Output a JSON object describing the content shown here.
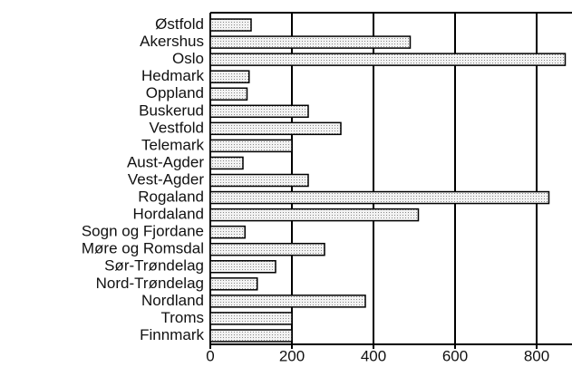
{
  "chart_data": {
    "type": "hbar",
    "categories": [
      "Østfold",
      "Akershus",
      "Oslo",
      "Hedmark",
      "Oppland",
      "Buskerud",
      "Vestfold",
      "Telemark",
      "Aust-Agder",
      "Vest-Agder",
      "Rogaland",
      "Hordaland",
      "Sogn og Fjordane",
      "Møre og Romsdal",
      "Sør-Trøndelag",
      "Nord-Trøndelag",
      "Nordland",
      "Troms",
      "Finnmark"
    ],
    "values": [
      100,
      490,
      870,
      95,
      90,
      240,
      320,
      200,
      80,
      240,
      830,
      510,
      85,
      280,
      160,
      115,
      380,
      200,
      200
    ],
    "color": "#dcdcdc",
    "xlim": [
      0,
      880
    ],
    "xticks": [
      0,
      200,
      400,
      600,
      800
    ],
    "grid": true
  }
}
